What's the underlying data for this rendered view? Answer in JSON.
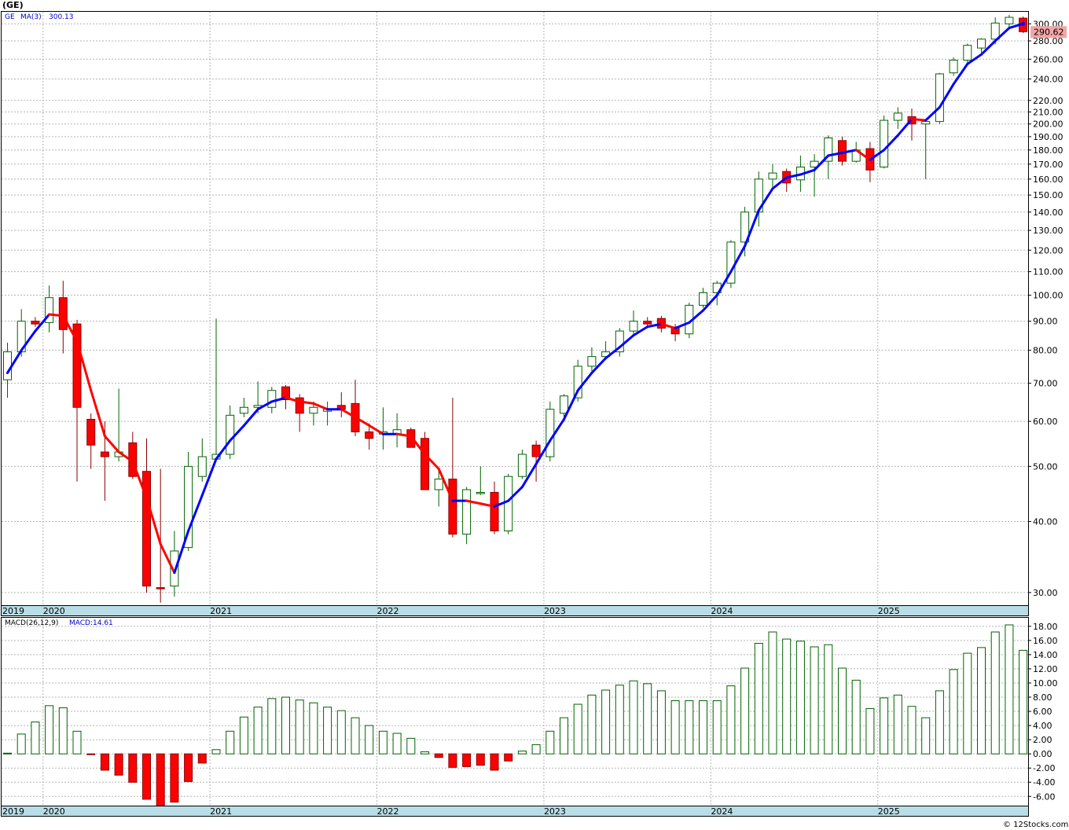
{
  "title": "(GE)",
  "watermark": "© 12Stocks.com",
  "colors": {
    "up": "#006400",
    "down": "#ff0000",
    "ma_up": "#0000ff",
    "ma_down": "#ff0000",
    "grid": "#b5b5b5",
    "axis_strip": "#b9dde7",
    "last_price_bg": "#f2a5a5"
  },
  "chart_data": [
    {
      "type": "candlestick",
      "symbol": "GE",
      "interval": "monthly",
      "scale": "log",
      "legend": {
        "symbol": "GE",
        "ma_label": "MA(3)",
        "ma_value": "300.13"
      },
      "last_price_label": "290.62",
      "ylim": [
        28.5,
        315
      ],
      "yticks": [
        30,
        40,
        50,
        60,
        70,
        80,
        90,
        100,
        110,
        120,
        130,
        140,
        150,
        160,
        170,
        180,
        190,
        200,
        210,
        220,
        240,
        260,
        280,
        300
      ],
      "ytick_labels": [
        "30.00",
        "40.00",
        "50.00",
        "60.00",
        "70.00",
        "80.00",
        "90.00",
        "100.00",
        "110.00",
        "120.00",
        "130.00",
        "140.00",
        "150.00",
        "160.00",
        "170.00",
        "180.00",
        "190.00",
        "200.00",
        "210.00",
        "220.00",
        "240.00",
        "260.00",
        "280.00",
        "300.00"
      ],
      "x_axis_labels": [
        "2019",
        "2020",
        "2021",
        "2022",
        "2023",
        "2024",
        "2025"
      ],
      "x_label_month_index": [
        0,
        3,
        15,
        27,
        39,
        51,
        63
      ],
      "ohlc": [
        [
          71,
          82.5,
          66,
          79.5
        ],
        [
          79.5,
          94.5,
          78,
          90
        ],
        [
          90,
          91.5,
          88,
          89
        ],
        [
          89.5,
          104,
          86,
          99
        ],
        [
          99,
          106,
          79,
          87
        ],
        [
          89,
          90.5,
          47,
          63.5
        ],
        [
          60.5,
          62,
          49.5,
          54.5
        ],
        [
          53,
          60,
          43.5,
          52
        ],
        [
          52,
          68.5,
          51,
          53
        ],
        [
          55,
          57.5,
          47.5,
          48
        ],
        [
          49,
          56,
          30,
          30.8
        ],
        [
          30.6,
          49.5,
          28.8,
          30.5
        ],
        [
          30.8,
          38.5,
          29.5,
          35.5
        ],
        [
          36,
          53,
          35.5,
          50
        ],
        [
          48,
          56,
          47,
          52
        ],
        [
          51.5,
          91,
          51,
          52.5
        ],
        [
          52.5,
          64,
          51.5,
          61.5
        ],
        [
          62,
          66,
          61,
          63.5
        ],
        [
          63.5,
          70.5,
          62,
          64
        ],
        [
          63.5,
          69,
          62,
          68
        ],
        [
          69,
          69.5,
          63,
          65.5
        ],
        [
          66,
          67,
          57.5,
          62
        ],
        [
          62,
          65,
          59,
          63.5
        ],
        [
          62.5,
          65,
          59,
          63
        ],
        [
          64,
          67.5,
          61,
          63
        ],
        [
          64.5,
          71,
          56.5,
          57.5
        ],
        [
          57.5,
          59.5,
          53.5,
          56
        ],
        [
          57,
          63.5,
          53.5,
          57.5
        ],
        [
          57,
          62,
          54,
          58
        ],
        [
          58,
          58.5,
          54,
          54
        ],
        [
          56,
          57.5,
          45.5,
          45.5
        ],
        [
          45.5,
          49.5,
          42.5,
          47.5
        ],
        [
          47.5,
          66,
          37.5,
          38
        ],
        [
          38,
          46,
          36.5,
          45.5
        ],
        [
          45,
          50,
          44.5,
          45
        ],
        [
          45,
          47,
          38,
          38.5
        ],
        [
          38.5,
          48.5,
          38,
          48
        ],
        [
          48,
          53.5,
          47.5,
          52.5
        ],
        [
          54.5,
          55.5,
          47,
          52
        ],
        [
          52,
          65,
          51,
          63
        ],
        [
          62,
          67,
          60,
          66.5
        ],
        [
          66,
          77,
          65,
          75
        ],
        [
          75,
          81,
          73.5,
          78
        ],
        [
          78,
          83,
          77,
          79.5
        ],
        [
          79.5,
          87.5,
          78,
          86.5
        ],
        [
          86.5,
          94,
          85.5,
          90
        ],
        [
          90,
          91.5,
          88,
          89
        ],
        [
          91,
          92,
          86,
          87.5
        ],
        [
          87.5,
          89,
          83,
          85.5
        ],
        [
          85.5,
          97,
          84,
          96
        ],
        [
          96,
          103,
          95,
          101
        ],
        [
          101,
          106,
          96,
          105
        ],
        [
          105,
          125,
          103,
          124
        ],
        [
          124,
          143,
          117,
          140
        ],
        [
          140,
          165,
          132,
          160
        ],
        [
          160,
          170,
          155,
          164
        ],
        [
          165,
          167,
          152,
          157.5
        ],
        [
          159.5,
          176,
          152,
          168
        ],
        [
          168,
          177,
          149,
          172
        ],
        [
          172,
          191,
          160,
          189
        ],
        [
          187,
          190,
          169,
          172
        ],
        [
          172,
          186,
          171,
          180
        ],
        [
          181,
          186,
          158,
          166
        ],
        [
          168,
          207,
          167,
          203
        ],
        [
          203,
          214,
          196,
          209
        ],
        [
          206,
          213,
          187,
          200
        ],
        [
          200,
          204,
          160,
          202
        ],
        [
          202,
          246,
          200,
          245
        ],
        [
          246,
          262,
          243,
          259
        ],
        [
          259,
          277,
          254,
          275
        ],
        [
          272,
          283,
          267,
          282
        ],
        [
          282,
          308,
          276,
          301
        ],
        [
          300,
          311,
          295,
          308
        ],
        [
          307,
          309,
          289,
          290.62
        ]
      ],
      "ma3": [
        73,
        80,
        86.5,
        92.5,
        92,
        83,
        68,
        56.5,
        53,
        51,
        44,
        36.5,
        32.5,
        38.5,
        44.5,
        51.5,
        55.5,
        59,
        63,
        65,
        66,
        65,
        64.5,
        63,
        63,
        61,
        59,
        57,
        57,
        56.5,
        52.5,
        49.5,
        43.5,
        43.5,
        43,
        42.5,
        43.5,
        46,
        50.5,
        55.5,
        60.5,
        68,
        73,
        77.5,
        81,
        85,
        88,
        89,
        87.5,
        89.5,
        94,
        100,
        110,
        122,
        141,
        154,
        161,
        163,
        166,
        176,
        178,
        180,
        173,
        180,
        191,
        204,
        203,
        214,
        235,
        255,
        265,
        280,
        295,
        300.13
      ]
    },
    {
      "type": "bar",
      "indicator": "MACD",
      "legend": {
        "params": "MACD(26,12,9)",
        "label": "MACD:14.61"
      },
      "ylim": [
        -7.3,
        19.2
      ],
      "yticks": [
        -6,
        -4,
        -2,
        0,
        2,
        4,
        6,
        8,
        10,
        12,
        14,
        16,
        18
      ],
      "ytick_labels": [
        "-6.00",
        "-4.00",
        "-2.00",
        "0.00",
        "2.00",
        "4.00",
        "6.00",
        "8.00",
        "10.00",
        "12.00",
        "14.00",
        "16.00",
        "18.00"
      ],
      "x_axis_labels": [
        "2019",
        "2020",
        "2021",
        "2022",
        "2023",
        "2024",
        "2025"
      ],
      "values": [
        0.1,
        2.8,
        4.5,
        6.8,
        6.5,
        3.2,
        -0.1,
        -2.3,
        -3.0,
        -4.0,
        -6.4,
        -7.3,
        -6.8,
        -3.9,
        -1.3,
        0.6,
        3.2,
        5.2,
        6.6,
        7.8,
        8.0,
        7.6,
        7.2,
        6.6,
        6.1,
        5.1,
        4.0,
        3.2,
        2.9,
        2.2,
        0.3,
        -0.5,
        -1.9,
        -1.8,
        -1.6,
        -2.3,
        -1.0,
        0.4,
        1.3,
        3.2,
        5.1,
        7.0,
        8.3,
        9.0,
        9.7,
        10.3,
        9.9,
        8.9,
        7.5,
        7.5,
        7.5,
        7.5,
        9.6,
        12.1,
        15.6,
        17.2,
        16.2,
        15.9,
        15.1,
        15.4,
        12.1,
        10.4,
        6.4,
        7.9,
        8.3,
        6.7,
        5.1,
        8.9,
        11.9,
        14.2,
        15.0,
        17.2,
        18.2,
        14.61
      ]
    }
  ]
}
